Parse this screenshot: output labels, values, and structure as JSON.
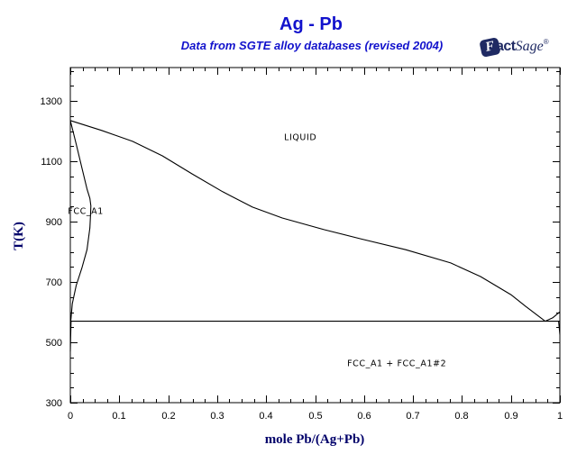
{
  "header": {
    "title": "Ag - Pb",
    "subtitle": "Data from SGTE alloy databases (revised 2004)"
  },
  "logo": {
    "f": "F",
    "act": "act",
    "sage": "Sage",
    "mark": "®"
  },
  "colors": {
    "title_blue": "#1212CC",
    "axis_title_navy": "#00006A",
    "logo_navy": "#1F2A63",
    "curve_black": "#000000",
    "background": "#FFFFFF"
  },
  "chart_data": {
    "type": "line",
    "title": "Ag - Pb",
    "subtitle": "Data from SGTE alloy databases (revised 2004)",
    "xlabel": "mole Pb/(Ag+Pb)",
    "ylabel": "T(K)",
    "x_range": [
      0,
      1
    ],
    "y_range": [
      300,
      1410
    ],
    "grid": false,
    "legend": false,
    "x_ticks": {
      "values": [
        0,
        0.1,
        0.2,
        0.3,
        0.4,
        0.5,
        0.6,
        0.7,
        0.8,
        0.9,
        1
      ],
      "labels": [
        "0",
        "0.1",
        "0.2",
        "0.3",
        "0.4",
        "0.5",
        "0.6",
        "0.7",
        "0.8",
        "0.9",
        "1"
      ],
      "minor_step": 0.025
    },
    "y_ticks": {
      "values": [
        300,
        500,
        700,
        900,
        1100,
        1300
      ],
      "labels": [
        "300",
        "500",
        "700",
        "900",
        "1100",
        "1300"
      ],
      "minor_step": 50
    },
    "series": [
      {
        "name": "liquidus-ag-rich",
        "points": [
          [
            0.0,
            1235
          ],
          [
            0.064,
            1202
          ],
          [
            0.127,
            1166
          ],
          [
            0.188,
            1118
          ],
          [
            0.249,
            1058
          ],
          [
            0.311,
            999
          ],
          [
            0.372,
            948
          ],
          [
            0.433,
            912
          ],
          [
            0.519,
            873
          ],
          [
            0.593,
            843
          ],
          [
            0.685,
            807
          ],
          [
            0.777,
            763
          ],
          [
            0.838,
            718
          ],
          [
            0.9,
            658
          ],
          [
            0.93,
            619
          ],
          [
            0.97,
            570
          ]
        ]
      },
      {
        "name": "liquidus-pb-rich",
        "points": [
          [
            0.97,
            570
          ],
          [
            0.985,
            581
          ],
          [
            1.0,
            601
          ]
        ]
      },
      {
        "name": "solidus-solvus-ag",
        "points": [
          [
            0.0,
            1235
          ],
          [
            0.012,
            1157
          ],
          [
            0.024,
            1076
          ],
          [
            0.034,
            1008
          ],
          [
            0.04,
            977
          ],
          [
            0.042,
            952
          ],
          [
            0.041,
            915
          ],
          [
            0.04,
            879
          ],
          [
            0.034,
            807
          ],
          [
            0.024,
            748
          ],
          [
            0.012,
            688
          ],
          [
            0.004,
            628
          ],
          [
            0.001,
            570
          ]
        ]
      },
      {
        "name": "eutectic-line",
        "points": [
          [
            0.0,
            570
          ],
          [
            1.0,
            570
          ]
        ]
      },
      {
        "name": "solvus-ag-below-eutectic",
        "points": [
          [
            0.0015,
            570
          ],
          [
            0.0,
            470
          ]
        ]
      },
      {
        "name": "solvus-pb-below-eutectic",
        "points": [
          [
            0.9975,
            570
          ],
          [
            1.0,
            525
          ]
        ]
      }
    ],
    "region_labels": [
      {
        "text": "LIQUID",
        "x": 0.47,
        "T": 1181,
        "anchor": "middle"
      },
      {
        "text": "FCC_A1",
        "x": -0.005,
        "T": 936,
        "anchor": "start"
      },
      {
        "text": "FCC_A1 + FCC_A1#2",
        "x": 0.667,
        "T": 431,
        "anchor": "middle"
      }
    ]
  }
}
